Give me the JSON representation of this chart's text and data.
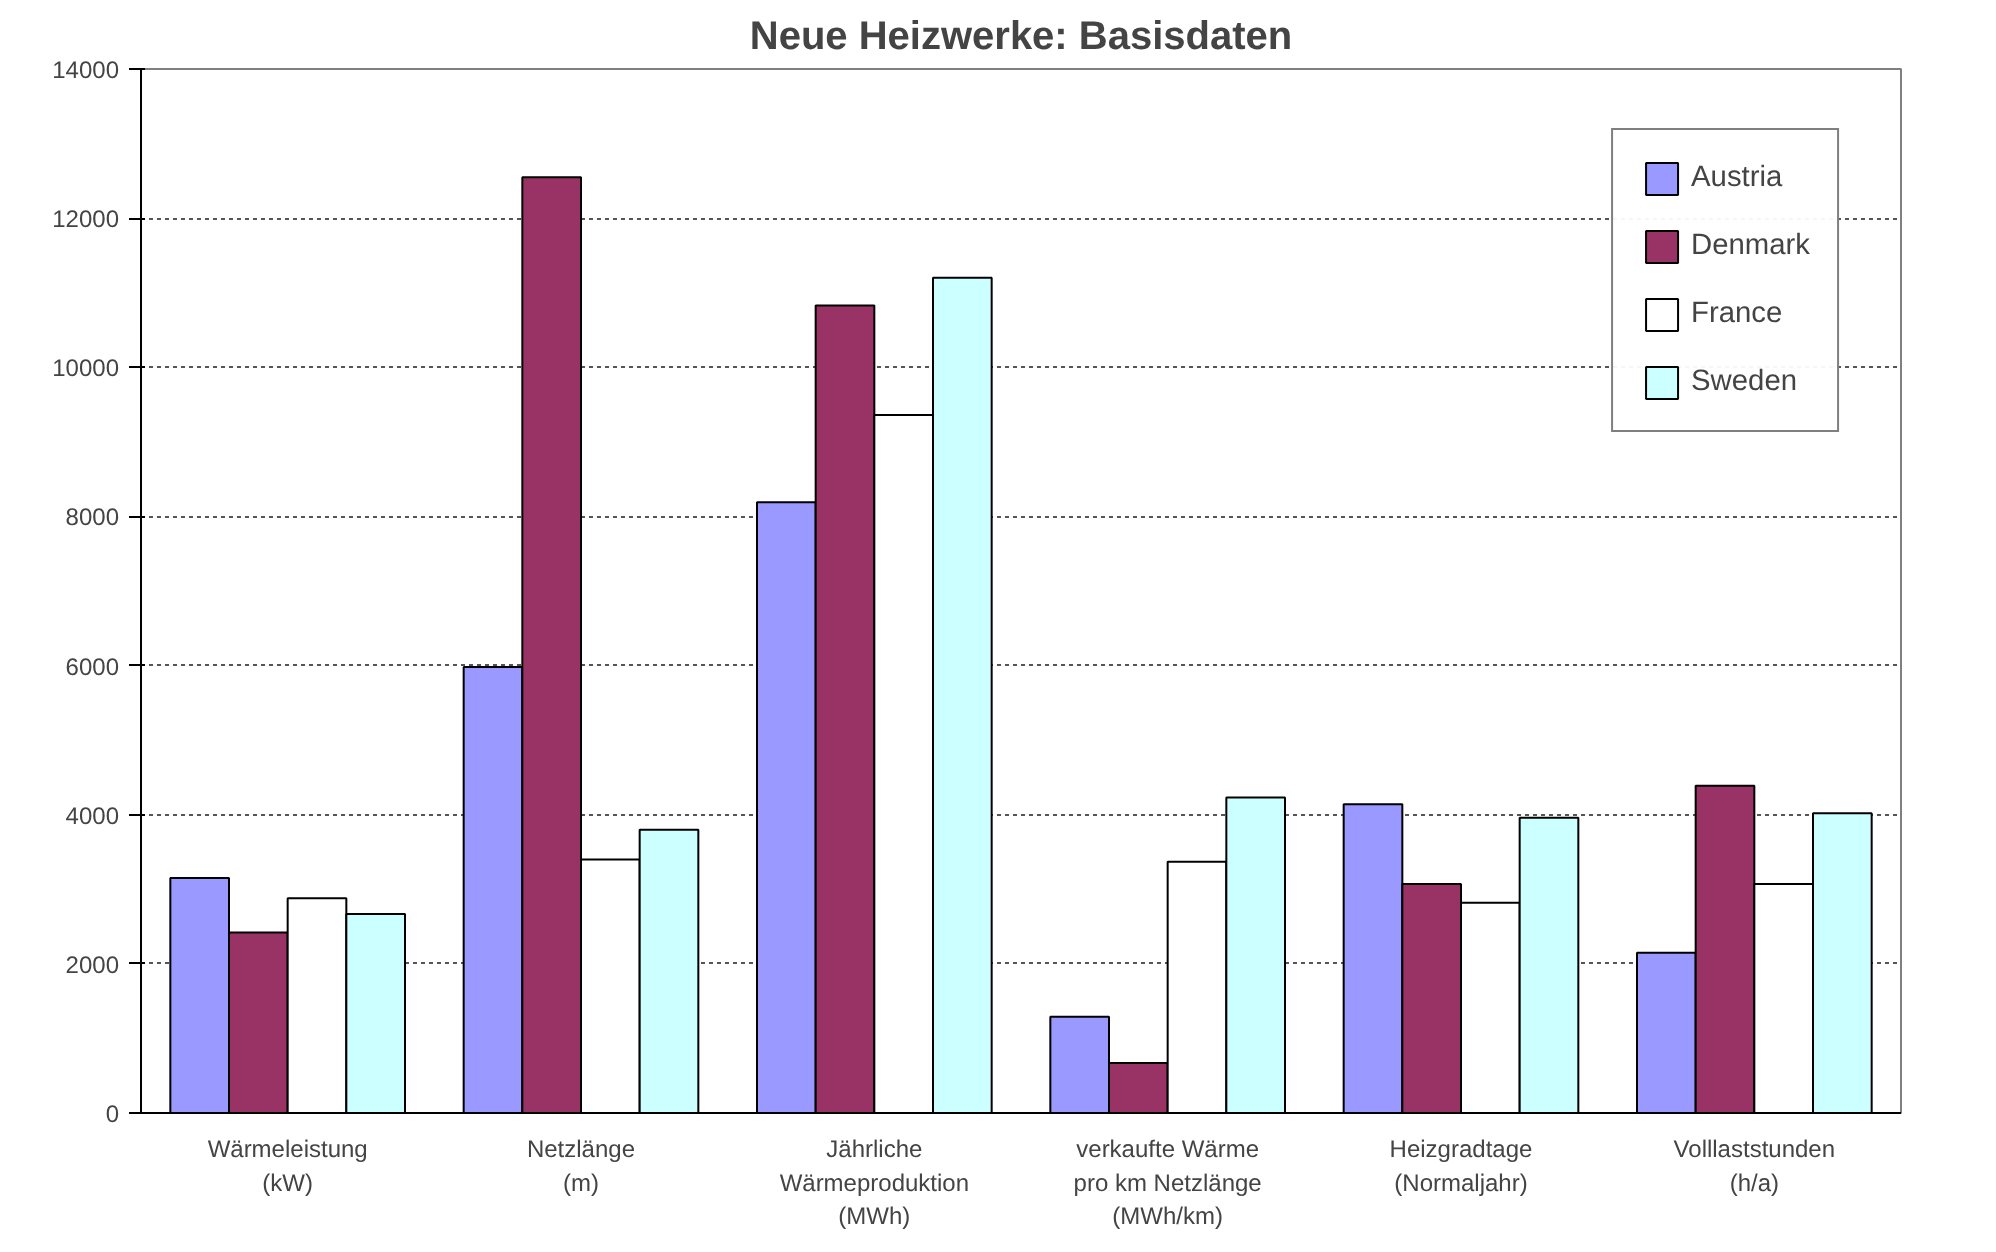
{
  "chart_data": {
    "type": "bar",
    "title": "Neue Heizwerke: Basisdaten",
    "categories": [
      "Wärmeleistung\n(kW)",
      "Netzlänge\n(m)",
      "Jährliche\nWärmeproduktion\n(MWh)",
      "verkaufte Wärme\npro km Netzlänge\n(MWh/km)",
      "Heizgradtage\n(Normaljahr)",
      "Volllaststunden\n(h/a)"
    ],
    "series": [
      {
        "name": "Austria",
        "color": "#9999ff",
        "values": [
          3150,
          5980,
          8190,
          1290,
          4140,
          2150
        ]
      },
      {
        "name": "Denmark",
        "color": "#993366",
        "values": [
          2420,
          12550,
          10830,
          670,
          3070,
          4390
        ]
      },
      {
        "name": "France",
        "color": "#ffffff",
        "values": [
          2880,
          3400,
          9360,
          3370,
          2820,
          3070
        ]
      },
      {
        "name": "Sweden",
        "color": "#ccffff",
        "values": [
          2670,
          3800,
          11200,
          4230,
          3960,
          4020
        ]
      }
    ],
    "ylim": [
      0,
      14000
    ],
    "yticks": [
      0,
      2000,
      4000,
      6000,
      8000,
      10000,
      12000,
      14000
    ],
    "grid": "y",
    "legend": "top right"
  }
}
